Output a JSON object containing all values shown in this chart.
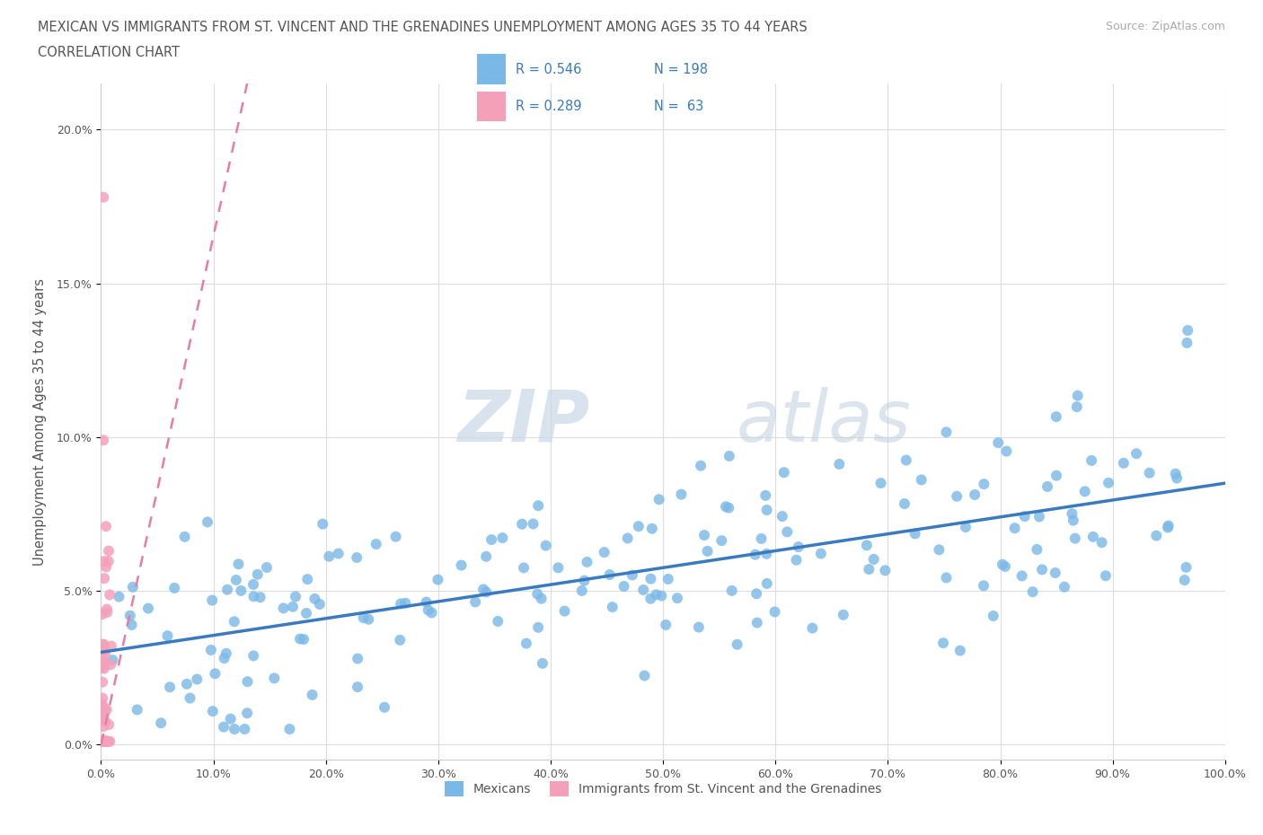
{
  "title_line1": "MEXICAN VS IMMIGRANTS FROM ST. VINCENT AND THE GRENADINES UNEMPLOYMENT AMONG AGES 35 TO 44 YEARS",
  "title_line2": "CORRELATION CHART",
  "source_text": "Source: ZipAtlas.com",
  "ylabel": "Unemployment Among Ages 35 to 44 years",
  "xlim": [
    0,
    1.0
  ],
  "ylim": [
    -0.005,
    0.215
  ],
  "yticks": [
    0.0,
    0.05,
    0.1,
    0.15,
    0.2
  ],
  "ytick_labels": [
    "0.0%",
    "5.0%",
    "10.0%",
    "15.0%",
    "20.0%"
  ],
  "xticks": [
    0.0,
    0.1,
    0.2,
    0.3,
    0.4,
    0.5,
    0.6,
    0.7,
    0.8,
    0.9,
    1.0
  ],
  "xtick_labels": [
    "0.0%",
    "10.0%",
    "20.0%",
    "30.0%",
    "40.0%",
    "50.0%",
    "60.0%",
    "70.0%",
    "80.0%",
    "90.0%",
    "100.0%"
  ],
  "blue_color": "#7ab8e8",
  "pink_color": "#f4a0bb",
  "blue_line_color": "#3a7bbf",
  "pink_line_color": "#e87da0",
  "legend_blue_R": "0.546",
  "legend_blue_N": "198",
  "legend_pink_R": "0.289",
  "legend_pink_N": "63",
  "legend_label_blue": "Mexicans",
  "legend_label_pink": "Immigrants from St. Vincent and the Grenadines",
  "watermark_zip": "ZIP",
  "watermark_atlas": "atlas",
  "background_color": "#ffffff",
  "grid_color": "#dddddd",
  "text_color": "#555555",
  "blue_R": 0.546,
  "blue_N": 198,
  "pink_R": 0.289,
  "pink_N": 63,
  "blue_trend_x0": 0.0,
  "blue_trend_y0": 0.03,
  "blue_trend_x1": 1.0,
  "blue_trend_y1": 0.085,
  "pink_trend_x0": 0.0,
  "pink_trend_y0": 0.0,
  "pink_trend_x1": 0.13,
  "pink_trend_y1": 0.215
}
